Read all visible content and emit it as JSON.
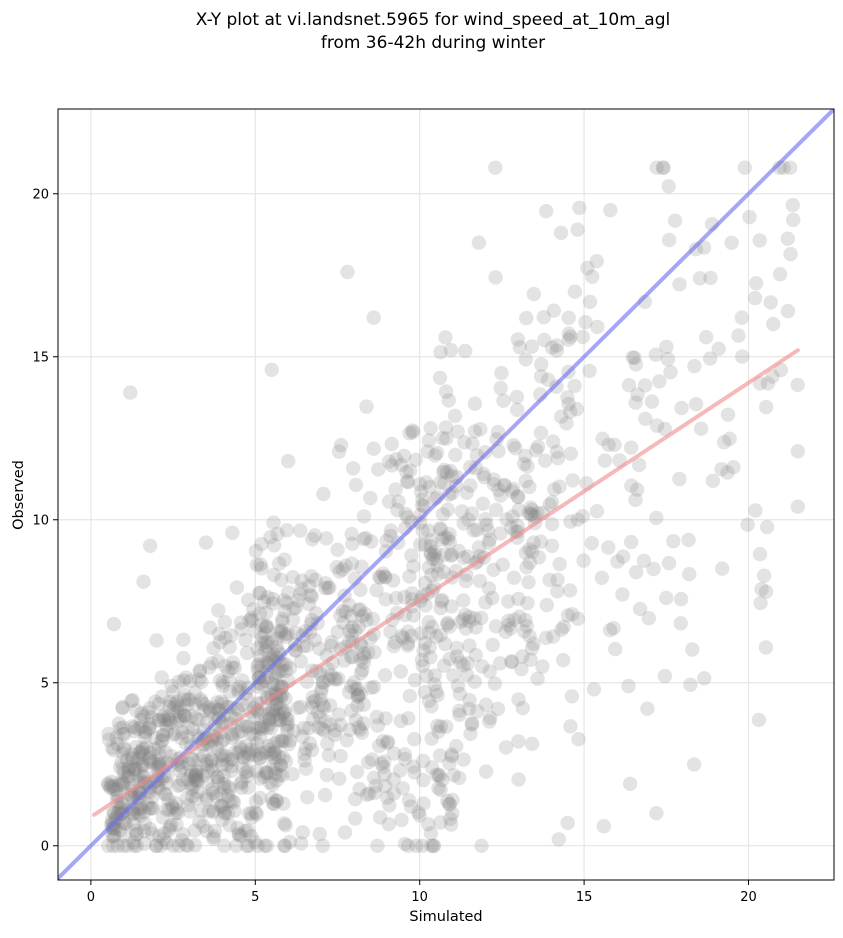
{
  "chart_data": {
    "type": "scatter",
    "title_lines": [
      "X-Y plot at vi.landsnet.5965 for wind_speed_at_10m_agl",
      "from 36-42h during winter"
    ],
    "xlabel": "Simulated",
    "ylabel": "Observed",
    "xlim": [
      -1.0,
      22.6
    ],
    "ylim": [
      -1.05,
      22.6
    ],
    "xticks": [
      0,
      5,
      10,
      15,
      20
    ],
    "yticks": [
      0,
      5,
      10,
      15,
      20
    ],
    "grid": true,
    "point_color": "#808080",
    "point_opacity": 0.22,
    "point_count_approx": 1500,
    "lines": [
      {
        "role": "one-to-one",
        "color": "#6a6af0",
        "x": [
          -1.0,
          22.6
        ],
        "y": [
          -1.0,
          22.6
        ]
      },
      {
        "role": "regression",
        "color": "#f08a8a",
        "x": [
          0.1,
          21.5
        ],
        "y": [
          0.95,
          15.2
        ]
      }
    ],
    "sample_points": [
      [
        1.2,
        13.9
      ],
      [
        12.3,
        20.8
      ],
      [
        7.8,
        17.6
      ],
      [
        8.6,
        16.2
      ],
      [
        15.8,
        19.5
      ],
      [
        14.3,
        18.8
      ],
      [
        11.8,
        18.5
      ],
      [
        18.4,
        18.3
      ],
      [
        20.2,
        16.8
      ],
      [
        19.8,
        16.2
      ],
      [
        21.5,
        12.1
      ],
      [
        21.5,
        10.4
      ],
      [
        19.2,
        8.5
      ],
      [
        17.5,
        7.6
      ],
      [
        17.2,
        1.0
      ],
      [
        15.6,
        0.6
      ],
      [
        14.5,
        0.7
      ],
      [
        9.9,
        0.0
      ],
      [
        5.5,
        14.6
      ],
      [
        4.3,
        9.6
      ],
      [
        1.8,
        9.2
      ],
      [
        1.6,
        8.1
      ],
      [
        2.0,
        6.3
      ],
      [
        0.7,
        6.8
      ],
      [
        15.3,
        4.8
      ],
      [
        16.4,
        1.9
      ],
      [
        13.0,
        3.2
      ],
      [
        11.5,
        4.2
      ],
      [
        3.5,
        9.3
      ],
      [
        6.0,
        11.8
      ]
    ]
  }
}
